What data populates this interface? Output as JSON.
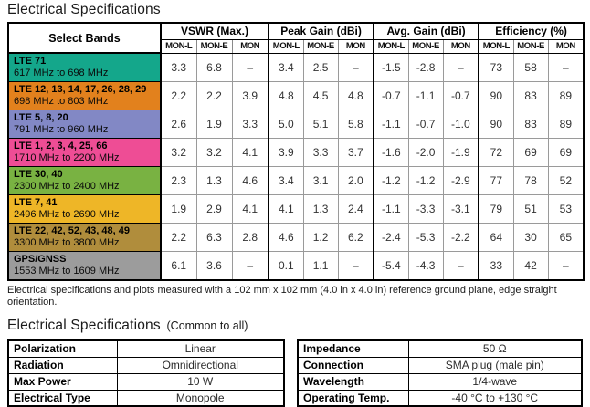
{
  "page": {
    "title": "Electrical Specifications",
    "footnote": "Electrical specifications and plots measured with a 102 mm x 102 mm (4.0 in x 4.0 in) reference ground plane, edge straight orientation.",
    "common_title_main": "Electrical Specifications",
    "common_title_suffix": "(Common to all)"
  },
  "spec_table": {
    "corner_header": "Select Bands",
    "column_groups": [
      {
        "label": "VSWR (Max.)",
        "subcolumns": [
          "MON-L",
          "MON-E",
          "MON"
        ]
      },
      {
        "label": "Peak Gain (dBi)",
        "subcolumns": [
          "MON-L",
          "MON-E",
          "MON"
        ]
      },
      {
        "label": "Avg. Gain (dBi)",
        "subcolumns": [
          "MON-L",
          "MON-E",
          "MON"
        ]
      },
      {
        "label": "Efficiency (%)",
        "subcolumns": [
          "MON-L",
          "MON-E",
          "MON"
        ]
      }
    ],
    "rows": [
      {
        "band": "LTE 71",
        "range": "617 MHz to 698 MHz",
        "color": "#14a78b",
        "values": [
          "3.3",
          "6.8",
          "–",
          "3.4",
          "2.5",
          "–",
          "-1.5",
          "-2.8",
          "–",
          "73",
          "58",
          "–"
        ]
      },
      {
        "band": "LTE 12, 13, 14, 17, 26, 28, 29",
        "range": "698 MHz to 803 MHz",
        "color": "#e2811d",
        "values": [
          "2.2",
          "2.2",
          "3.9",
          "4.8",
          "4.5",
          "4.8",
          "-0.7",
          "-1.1",
          "-0.7",
          "90",
          "83",
          "89"
        ]
      },
      {
        "band": "LTE 5, 8, 20",
        "range": "791 MHz to 960 MHz",
        "color": "#8288c5",
        "values": [
          "2.6",
          "1.9",
          "3.3",
          "5.0",
          "5.1",
          "5.8",
          "-1.1",
          "-0.7",
          "-1.0",
          "90",
          "83",
          "89"
        ]
      },
      {
        "band": "LTE 1, 2, 3, 4, 25, 66",
        "range": "1710 MHz to 2200 MHz",
        "color": "#ee4d95",
        "values": [
          "3.2",
          "3.2",
          "4.1",
          "3.9",
          "3.3",
          "3.7",
          "-1.6",
          "-2.0",
          "-1.9",
          "72",
          "69",
          "69"
        ]
      },
      {
        "band": "LTE 30, 40",
        "range": "2300 MHz to 2400 MHz",
        "color": "#79b242",
        "values": [
          "2.3",
          "1.3",
          "4.6",
          "3.4",
          "3.1",
          "2.0",
          "-1.2",
          "-1.2",
          "-2.9",
          "77",
          "78",
          "52"
        ]
      },
      {
        "band": "LTE 7, 41",
        "range": "2496 MHz to 2690 MHz",
        "color": "#eeb627",
        "values": [
          "1.9",
          "2.9",
          "4.1",
          "4.1",
          "1.3",
          "2.4",
          "-1.1",
          "-3.3",
          "-3.1",
          "79",
          "51",
          "53"
        ]
      },
      {
        "band": "LTE 22, 42, 52, 43, 48, 49",
        "range": "3300 MHz to 3800 MHz",
        "color": "#b08d3c",
        "values": [
          "2.2",
          "6.3",
          "2.8",
          "4.6",
          "1.2",
          "6.2",
          "-2.4",
          "-5.3",
          "-2.2",
          "64",
          "30",
          "65"
        ]
      },
      {
        "band": "GPS/GNSS",
        "range": "1553 MHz to 1609 MHz",
        "color": "#9c9c9c",
        "values": [
          "6.1",
          "3.6",
          "–",
          "0.1",
          "1.1",
          "–",
          "-5.4",
          "-4.3",
          "–",
          "33",
          "42",
          "–"
        ]
      }
    ]
  },
  "common_tables": {
    "left": {
      "rows": [
        {
          "label": "Polarization",
          "value": "Linear"
        },
        {
          "label": "Radiation",
          "value": "Omnidirectional"
        },
        {
          "label": "Max Power",
          "value": "10 W"
        },
        {
          "label": "Electrical Type",
          "value": "Monopole"
        }
      ]
    },
    "right": {
      "rows": [
        {
          "label": "Impedance",
          "value": "50 Ω"
        },
        {
          "label": "Connection",
          "value": "SMA plug (male pin)"
        },
        {
          "label": "Wavelength",
          "value": "1/4-wave"
        },
        {
          "label": "Operating Temp.",
          "value": "-40 °C to +130 °C"
        }
      ]
    }
  }
}
